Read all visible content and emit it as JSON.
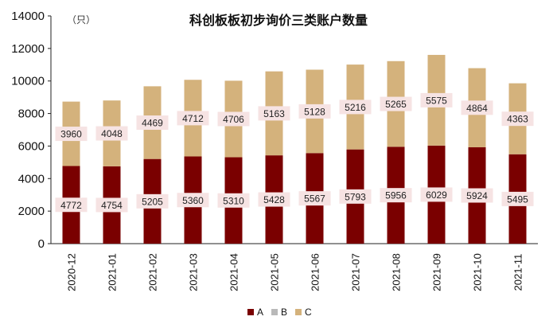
{
  "chart_data": {
    "type": "bar",
    "title": "科创板板初步询价三类账户数量",
    "unit_label": "（只）",
    "categories": [
      "2020-12",
      "2021-01",
      "2021-02",
      "2021-03",
      "2021-04",
      "2021-05",
      "2021-06",
      "2021-07",
      "2021-08",
      "2021-09",
      "2021-10",
      "2021-11"
    ],
    "series": [
      {
        "name": "A",
        "color": "#7a0000",
        "values": [
          4772,
          4754,
          5205,
          5360,
          5310,
          5428,
          5567,
          5793,
          5956,
          6029,
          5924,
          5495
        ]
      },
      {
        "name": "B",
        "color": "#b9b9b9",
        "values": [
          0,
          0,
          0,
          0,
          0,
          0,
          0,
          0,
          0,
          0,
          0,
          0
        ]
      },
      {
        "name": "C",
        "color": "#d4b27c",
        "values": [
          3960,
          4048,
          4469,
          4712,
          4706,
          5163,
          5128,
          5216,
          5265,
          5575,
          4864,
          4363
        ]
      }
    ],
    "ylim": [
      0,
      14000
    ],
    "yticks": [
      0,
      2000,
      4000,
      6000,
      8000,
      10000,
      12000,
      14000
    ],
    "grid": false,
    "legend_position": "bottom-center",
    "data_label_bg": "#f6e3e3"
  }
}
